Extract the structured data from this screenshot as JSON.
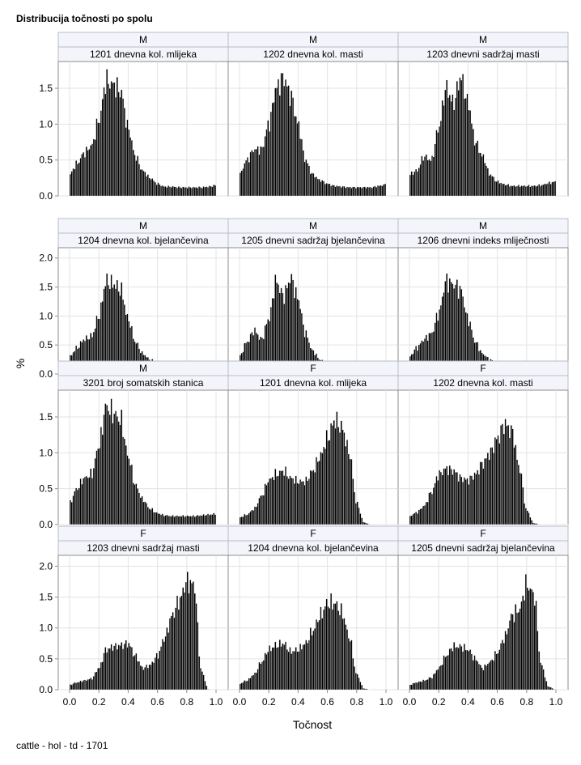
{
  "title": "Distribucija točnosti po spolu",
  "footer": "cattle - hol - td - 1701",
  "chart_data": {
    "type": "bar",
    "subtype": "histogram-panel-grid",
    "title": "Distribucija točnosti po spolu",
    "xlabel": "Točnost",
    "ylabel": "%",
    "xlim": [
      0,
      1
    ],
    "xticks": [
      0.0,
      0.2,
      0.4,
      0.6,
      0.8,
      1.0
    ],
    "xtick_labels": [
      "0.0",
      "0.2",
      "0.4",
      "0.6",
      "0.8",
      "1.0"
    ],
    "grid": true,
    "bar_color": "#000000",
    "rows": [
      {
        "ylim": [
          0,
          1.85
        ],
        "yticks": [
          0.0,
          0.5,
          1.0,
          1.5
        ],
        "ytick_labels": [
          "0.0",
          "0.5",
          "1.0",
          "1.5"
        ]
      },
      {
        "ylim": [
          0,
          2.15
        ],
        "yticks": [
          0.0,
          0.5,
          1.0,
          1.5,
          2.0
        ],
        "ytick_labels": [
          "0.0",
          "0.5",
          "1.0",
          "1.5",
          "2.0"
        ]
      },
      {
        "ylim": [
          0,
          1.85
        ],
        "yticks": [
          0.0,
          0.5,
          1.0,
          1.5
        ],
        "ytick_labels": [
          "0.0",
          "0.5",
          "1.0",
          "1.5"
        ]
      },
      {
        "ylim": [
          0,
          2.15
        ],
        "yticks": [
          0.0,
          0.5,
          1.0,
          1.5,
          2.0
        ],
        "ytick_labels": [
          "0.0",
          "0.5",
          "1.0",
          "1.5",
          "2.0"
        ]
      }
    ],
    "panels": [
      {
        "sex": "M",
        "trait": "1201 dnevna kol. mlijeka",
        "profile": "A",
        "bins_x": [
          0.0,
          0.05,
          0.1,
          0.15,
          0.2,
          0.25,
          0.3,
          0.35,
          0.4,
          0.45,
          0.5,
          0.55,
          0.6,
          0.65,
          0.7,
          0.75,
          0.8,
          0.85,
          0.9,
          0.95,
          1.0
        ],
        "values_pct": [
          0.3,
          0.45,
          0.6,
          0.7,
          1.05,
          1.6,
          1.55,
          1.45,
          0.95,
          0.55,
          0.35,
          0.25,
          0.17,
          0.13,
          0.13,
          0.12,
          0.12,
          0.12,
          0.12,
          0.13,
          0.15
        ]
      },
      {
        "sex": "M",
        "trait": "1202 dnevna kol. masti",
        "profile": "A",
        "bins_x": [
          0.0,
          0.05,
          0.1,
          0.15,
          0.2,
          0.25,
          0.3,
          0.35,
          0.4,
          0.45,
          0.5,
          0.55,
          0.6,
          0.65,
          0.7,
          0.75,
          0.8,
          0.85,
          0.9,
          0.95,
          1.0
        ],
        "values_pct": [
          0.3,
          0.5,
          0.65,
          0.65,
          1.0,
          1.5,
          1.65,
          1.4,
          1.0,
          0.5,
          0.3,
          0.22,
          0.17,
          0.14,
          0.13,
          0.12,
          0.12,
          0.12,
          0.12,
          0.14,
          0.16
        ]
      },
      {
        "sex": "M",
        "trait": "1203 dnevni sadržaj masti",
        "profile": "B",
        "bins_x": [
          0.0,
          0.05,
          0.1,
          0.15,
          0.2,
          0.25,
          0.3,
          0.35,
          0.4,
          0.45,
          0.5,
          0.55,
          0.6,
          0.65,
          0.7,
          0.75,
          0.8,
          0.85,
          0.9,
          0.95,
          1.0
        ],
        "values_pct": [
          0.3,
          0.35,
          0.55,
          0.5,
          0.95,
          1.5,
          1.3,
          1.65,
          1.3,
          0.75,
          0.55,
          0.3,
          0.2,
          0.16,
          0.14,
          0.14,
          0.14,
          0.14,
          0.15,
          0.18,
          0.2
        ]
      },
      {
        "sex": "M",
        "trait": "1204 dnevna kol. bjelančevina",
        "profile": "A",
        "bins_x": [
          0.0,
          0.05,
          0.1,
          0.15,
          0.2,
          0.25,
          0.3,
          0.35,
          0.4,
          0.45,
          0.5,
          0.55,
          0.6,
          0.65,
          0.7,
          0.75,
          0.8,
          0.85,
          0.9,
          0.95,
          1.0
        ],
        "values_pct": [
          0.3,
          0.45,
          0.6,
          0.65,
          1.0,
          1.6,
          1.55,
          1.45,
          0.95,
          0.55,
          0.35,
          0.25,
          0.17,
          0.14,
          0.12,
          0.12,
          0.12,
          0.12,
          0.13,
          0.14,
          0.15
        ]
      },
      {
        "sex": "M",
        "trait": "1205 dnevni sadržaj bjelančevina",
        "profile": "B",
        "bins_x": [
          0.0,
          0.05,
          0.1,
          0.15,
          0.2,
          0.25,
          0.3,
          0.35,
          0.4,
          0.45,
          0.5,
          0.55,
          0.6,
          0.65,
          0.7,
          0.75,
          0.8,
          0.85,
          0.9,
          0.95,
          1.0
        ],
        "values_pct": [
          0.3,
          0.55,
          0.75,
          0.6,
          0.95,
          1.6,
          1.35,
          1.65,
          1.3,
          0.7,
          0.4,
          0.25,
          0.18,
          0.15,
          0.13,
          0.13,
          0.13,
          0.13,
          0.14,
          0.16,
          0.18
        ]
      },
      {
        "sex": "M",
        "trait": "1206 dnevni indeks mliječnosti",
        "profile": "A",
        "bins_x": [
          0.0,
          0.05,
          0.1,
          0.15,
          0.2,
          0.25,
          0.3,
          0.35,
          0.4,
          0.45,
          0.5,
          0.55,
          0.6,
          0.65,
          0.7,
          0.75,
          0.8,
          0.85,
          0.9,
          0.95,
          1.0
        ],
        "values_pct": [
          0.3,
          0.45,
          0.6,
          0.7,
          1.05,
          1.6,
          1.55,
          1.45,
          0.95,
          0.55,
          0.35,
          0.25,
          0.17,
          0.14,
          0.12,
          0.12,
          0.12,
          0.12,
          0.13,
          0.14,
          0.15
        ]
      },
      {
        "sex": "M",
        "trait": "3201 broj somatskih stanica",
        "profile": "A",
        "bins_x": [
          0.0,
          0.05,
          0.1,
          0.15,
          0.2,
          0.25,
          0.3,
          0.35,
          0.4,
          0.45,
          0.5,
          0.55,
          0.6,
          0.65,
          0.7,
          0.75,
          0.8,
          0.85,
          0.9,
          0.95,
          1.0
        ],
        "values_pct": [
          0.3,
          0.5,
          0.65,
          0.7,
          1.1,
          1.65,
          1.55,
          1.45,
          0.95,
          0.55,
          0.35,
          0.22,
          0.16,
          0.13,
          0.12,
          0.12,
          0.12,
          0.12,
          0.13,
          0.14,
          0.15
        ]
      },
      {
        "sex": "F",
        "trait": "1201 dnevna kol. mlijeka",
        "profile": "C",
        "bins_x": [
          0.0,
          0.05,
          0.1,
          0.15,
          0.2,
          0.25,
          0.3,
          0.35,
          0.4,
          0.45,
          0.5,
          0.55,
          0.6,
          0.65,
          0.7,
          0.75,
          0.8,
          0.85,
          0.9,
          0.95,
          1.0
        ],
        "values_pct": [
          0.1,
          0.14,
          0.22,
          0.4,
          0.62,
          0.7,
          0.75,
          0.65,
          0.6,
          0.6,
          0.75,
          0.95,
          1.2,
          1.45,
          1.35,
          1.0,
          0.3,
          0.03,
          0.0,
          0.0,
          0.0
        ]
      },
      {
        "sex": "F",
        "trait": "1202 dnevna kol. masti",
        "profile": "C",
        "bins_x": [
          0.0,
          0.05,
          0.1,
          0.15,
          0.2,
          0.25,
          0.3,
          0.35,
          0.4,
          0.45,
          0.5,
          0.55,
          0.6,
          0.65,
          0.7,
          0.75,
          0.8,
          0.85,
          0.9,
          0.95,
          1.0
        ],
        "values_pct": [
          0.12,
          0.17,
          0.26,
          0.45,
          0.7,
          0.78,
          0.75,
          0.65,
          0.62,
          0.7,
          0.85,
          1.0,
          1.2,
          1.4,
          1.3,
          0.8,
          0.2,
          0.02,
          0.0,
          0.0,
          0.0
        ]
      },
      {
        "sex": "F",
        "trait": "1203 dnevni sadržaj masti",
        "profile": "D",
        "bins_x": [
          0.0,
          0.05,
          0.1,
          0.15,
          0.2,
          0.25,
          0.3,
          0.35,
          0.4,
          0.45,
          0.5,
          0.55,
          0.6,
          0.65,
          0.7,
          0.75,
          0.8,
          0.85,
          0.9,
          0.95,
          1.0
        ],
        "values_pct": [
          0.08,
          0.12,
          0.15,
          0.18,
          0.35,
          0.65,
          0.7,
          0.72,
          0.75,
          0.55,
          0.35,
          0.4,
          0.55,
          0.85,
          1.2,
          1.45,
          1.75,
          1.7,
          0.3,
          0.0,
          0.0
        ]
      },
      {
        "sex": "F",
        "trait": "1204 dnevna kol. bjelančevina",
        "profile": "C",
        "bins_x": [
          0.0,
          0.05,
          0.1,
          0.15,
          0.2,
          0.25,
          0.3,
          0.35,
          0.4,
          0.45,
          0.5,
          0.55,
          0.6,
          0.65,
          0.7,
          0.75,
          0.8,
          0.85,
          0.9,
          0.95,
          1.0
        ],
        "values_pct": [
          0.1,
          0.15,
          0.25,
          0.45,
          0.65,
          0.72,
          0.75,
          0.62,
          0.65,
          0.75,
          0.95,
          1.2,
          1.4,
          1.4,
          1.25,
          0.85,
          0.25,
          0.02,
          0.0,
          0.0,
          0.0
        ]
      },
      {
        "sex": "F",
        "trait": "1205 dnevni sadržaj bjelančevina",
        "profile": "D",
        "bins_x": [
          0.0,
          0.05,
          0.1,
          0.15,
          0.2,
          0.25,
          0.3,
          0.35,
          0.4,
          0.45,
          0.5,
          0.55,
          0.6,
          0.65,
          0.7,
          0.75,
          0.8,
          0.85,
          0.9,
          0.95,
          1.0
        ],
        "values_pct": [
          0.08,
          0.12,
          0.15,
          0.2,
          0.35,
          0.55,
          0.7,
          0.7,
          0.65,
          0.5,
          0.35,
          0.45,
          0.6,
          0.85,
          1.2,
          1.3,
          1.7,
          1.55,
          0.4,
          0.05,
          0.0
        ]
      }
    ]
  }
}
